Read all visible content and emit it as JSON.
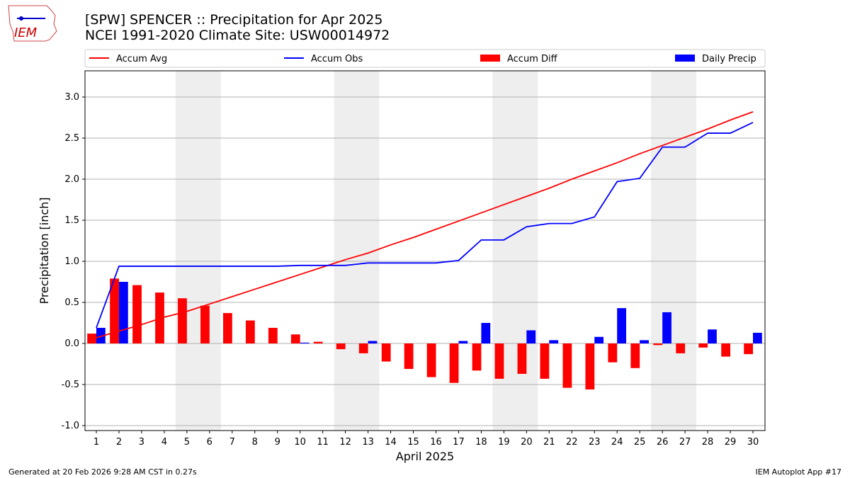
{
  "header": {
    "title": "[SPW] SPENCER :: Precipitation for Apr 2025",
    "subtitle": "NCEI 1991-2020 Climate Site: USW00014972",
    "logo_text": "IEM"
  },
  "footer": {
    "left": "Generated at 20 Feb 2026 9:28 AM CST in 0.27s",
    "right": "IEM Autoplot App #17"
  },
  "colors": {
    "avg": "#ff0000",
    "obs": "#0000ff",
    "diff": "#ff0000",
    "daily": "#0000ff",
    "weekend": "#eeeeee"
  },
  "chart_data": {
    "type": "bar",
    "xlabel": "April 2025",
    "ylabel": "Precipitation [inch]",
    "ylim": [
      -1.05,
      3.32
    ],
    "yticks": [
      "-1.0",
      "-0.5",
      "0.0",
      "0.5",
      "1.0",
      "1.5",
      "2.0",
      "2.5",
      "3.0"
    ],
    "ytick_values": [
      -1.0,
      -0.5,
      0.0,
      0.5,
      1.0,
      1.5,
      2.0,
      2.5,
      3.0
    ],
    "grid": true,
    "legend_position": "top",
    "x": [
      "1",
      "2",
      "3",
      "4",
      "5",
      "6",
      "7",
      "8",
      "9",
      "10",
      "11",
      "12",
      "13",
      "14",
      "15",
      "16",
      "17",
      "18",
      "19",
      "20",
      "21",
      "22",
      "23",
      "24",
      "25",
      "26",
      "27",
      "28",
      "29",
      "30"
    ],
    "weekend_days": [
      5,
      6,
      12,
      13,
      19,
      20,
      26,
      27
    ],
    "series": [
      {
        "name": "Accum Avg",
        "type": "line",
        "values": [
          0.07,
          0.15,
          0.23,
          0.32,
          0.39,
          0.48,
          0.57,
          0.66,
          0.75,
          0.84,
          0.93,
          1.02,
          1.1,
          1.2,
          1.29,
          1.39,
          1.49,
          1.59,
          1.69,
          1.79,
          1.89,
          2.0,
          2.1,
          2.2,
          2.31,
          2.41,
          2.51,
          2.61,
          2.72,
          2.82
        ]
      },
      {
        "name": "Accum Obs",
        "type": "line",
        "values": [
          0.19,
          0.94,
          0.94,
          0.94,
          0.94,
          0.94,
          0.94,
          0.94,
          0.94,
          0.95,
          0.95,
          0.95,
          0.98,
          0.98,
          0.98,
          0.98,
          1.01,
          1.26,
          1.26,
          1.42,
          1.46,
          1.46,
          1.54,
          1.97,
          2.01,
          2.39,
          2.39,
          2.56,
          2.56,
          2.69
        ]
      },
      {
        "name": "Accum Diff",
        "type": "bar",
        "values": [
          0.12,
          0.79,
          0.71,
          0.62,
          0.55,
          0.46,
          0.37,
          0.28,
          0.19,
          0.11,
          0.02,
          -0.07,
          -0.12,
          -0.22,
          -0.31,
          -0.41,
          -0.48,
          -0.33,
          -0.43,
          -0.37,
          -0.43,
          -0.54,
          -0.56,
          -0.23,
          -0.3,
          -0.02,
          -0.12,
          -0.05,
          -0.16,
          -0.13
        ]
      },
      {
        "name": "Daily Precip",
        "type": "bar",
        "values": [
          0.19,
          0.75,
          0,
          0,
          0,
          0,
          0,
          0,
          0,
          0.01,
          0,
          0,
          0.03,
          0,
          0,
          0,
          0.03,
          0.25,
          0,
          0.16,
          0.04,
          0,
          0.08,
          0.43,
          0.04,
          0.38,
          0,
          0.17,
          0,
          0.13
        ]
      }
    ]
  }
}
